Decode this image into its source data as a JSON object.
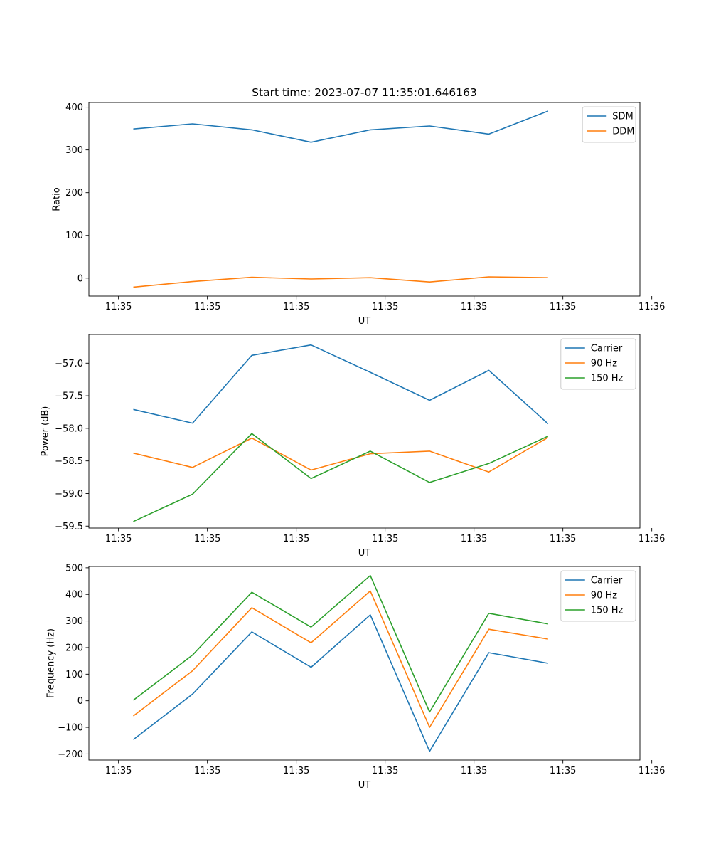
{
  "chart_data": [
    {
      "type": "line",
      "title": "Start time: 2023-07-07 11:35:01.646163",
      "xlabel": "UT",
      "ylabel": "Ratio",
      "xlim": [
        -0.5,
        8.8
      ],
      "ylim": [
        -42,
        411
      ],
      "x": [
        0.25,
        1.25,
        2.25,
        3.25,
        4.25,
        5.25,
        6.25,
        7.25
      ],
      "x_ticks": [
        0,
        1.5,
        3,
        4.5,
        6,
        7.5,
        9
      ],
      "x_tick_labels": [
        "11:35",
        "11:35",
        "11:35",
        "11:35",
        "11:35",
        "11:35",
        "11:36"
      ],
      "y_ticks": [
        0,
        100,
        200,
        300,
        400
      ],
      "y_tick_labels": [
        "0",
        "100",
        "200",
        "300",
        "400"
      ],
      "legend_position": "top-right",
      "series": [
        {
          "name": "SDM",
          "color": "#1f77b4",
          "values": [
            349,
            361,
            347,
            318,
            347,
            356,
            337,
            391
          ]
        },
        {
          "name": "DDM",
          "color": "#ff7f0e",
          "values": [
            -21,
            -8,
            2,
            -2,
            1,
            -9,
            3,
            1
          ]
        }
      ]
    },
    {
      "type": "line",
      "title": "",
      "xlabel": "UT",
      "ylabel": "Power (dB)",
      "xlim": [
        -0.5,
        8.8
      ],
      "ylim": [
        -59.53,
        -56.56
      ],
      "x": [
        0.25,
        1.25,
        2.25,
        3.25,
        4.25,
        5.25,
        6.25,
        7.25
      ],
      "x_ticks": [
        0,
        1.5,
        3,
        4.5,
        6,
        7.5,
        9
      ],
      "x_tick_labels": [
        "11:35",
        "11:35",
        "11:35",
        "11:35",
        "11:35",
        "11:35",
        "11:36"
      ],
      "y_ticks": [
        -57.0,
        -57.5,
        -58.0,
        -58.5,
        -59.0,
        -59.5
      ],
      "y_tick_labels": [
        "−57.0",
        "−57.5",
        "−58.0",
        "−58.5",
        "−59.0",
        "−59.5"
      ],
      "legend_position": "top-right",
      "series": [
        {
          "name": "Carrier",
          "color": "#1f77b4",
          "values": [
            -57.71,
            -57.92,
            -56.88,
            -56.72,
            -57.14,
            -57.57,
            -57.11,
            -57.93
          ]
        },
        {
          "name": "90 Hz",
          "color": "#ff7f0e",
          "values": [
            -58.38,
            -58.6,
            -58.15,
            -58.64,
            -58.39,
            -58.35,
            -58.67,
            -58.14
          ]
        },
        {
          "name": "150 Hz",
          "color": "#2ca02c",
          "values": [
            -59.43,
            -59.01,
            -58.08,
            -58.77,
            -58.35,
            -58.83,
            -58.54,
            -58.12
          ]
        }
      ]
    },
    {
      "type": "line",
      "title": "",
      "xlabel": "UT",
      "ylabel": "Frequency (Hz)",
      "xlim": [
        -0.5,
        8.8
      ],
      "ylim": [
        -223,
        505
      ],
      "x": [
        0.25,
        1.25,
        2.25,
        3.25,
        4.25,
        5.25,
        6.25,
        7.25
      ],
      "x_ticks": [
        0,
        1.5,
        3,
        4.5,
        6,
        7.5,
        9
      ],
      "x_tick_labels": [
        "11:35",
        "11:35",
        "11:35",
        "11:35",
        "11:35",
        "11:35",
        "11:36"
      ],
      "y_ticks": [
        -200,
        -100,
        0,
        100,
        200,
        300,
        400,
        500
      ],
      "y_tick_labels": [
        "−200",
        "−100",
        "0",
        "100",
        "200",
        "300",
        "400",
        "500"
      ],
      "legend_position": "top-right",
      "series": [
        {
          "name": "Carrier",
          "color": "#1f77b4",
          "values": [
            -146,
            25,
            259,
            126,
            323,
            -190,
            181,
            141
          ]
        },
        {
          "name": "90 Hz",
          "color": "#ff7f0e",
          "values": [
            -57,
            113,
            350,
            218,
            413,
            -100,
            269,
            232
          ]
        },
        {
          "name": "150 Hz",
          "color": "#2ca02c",
          "values": [
            2,
            172,
            408,
            277,
            471,
            -42,
            329,
            289
          ]
        }
      ]
    }
  ]
}
